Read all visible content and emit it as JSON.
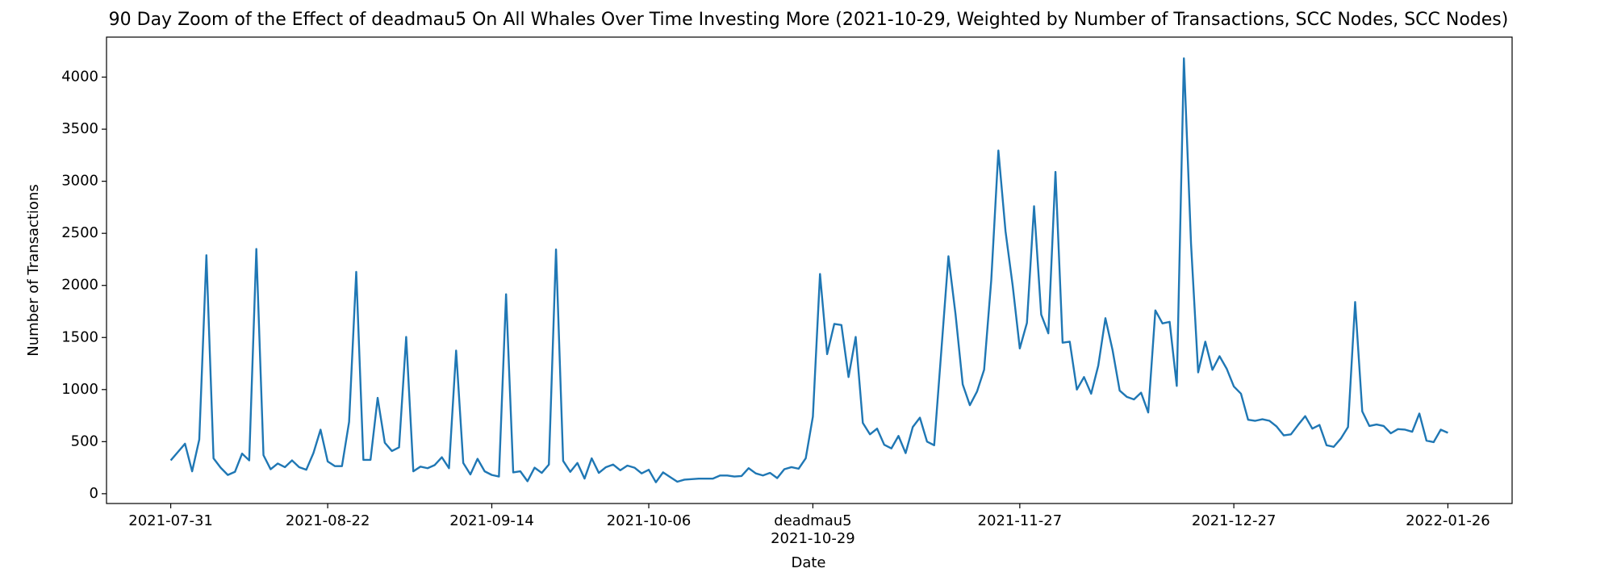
{
  "chart_data": {
    "type": "line",
    "title": "90 Day Zoom of the Effect of deadmau5 On All Whales Over Time Investing More (2021-10-29, Weighted by Number of Transactions, SCC Nodes, SCC Nodes)",
    "xlabel": "Date",
    "ylabel": "Number of Transactions",
    "color": "#1f77b4",
    "x": [
      "2021-07-31",
      "2021-08-01",
      "2021-08-02",
      "2021-08-03",
      "2021-08-04",
      "2021-08-05",
      "2021-08-06",
      "2021-08-07",
      "2021-08-08",
      "2021-08-09",
      "2021-08-10",
      "2021-08-11",
      "2021-08-12",
      "2021-08-13",
      "2021-08-14",
      "2021-08-15",
      "2021-08-16",
      "2021-08-17",
      "2021-08-18",
      "2021-08-19",
      "2021-08-20",
      "2021-08-21",
      "2021-08-22",
      "2021-08-23",
      "2021-08-24",
      "2021-08-25",
      "2021-08-26",
      "2021-08-27",
      "2021-08-28",
      "2021-08-29",
      "2021-08-30",
      "2021-08-31",
      "2021-09-01",
      "2021-09-02",
      "2021-09-03",
      "2021-09-04",
      "2021-09-05",
      "2021-09-06",
      "2021-09-07",
      "2021-09-08",
      "2021-09-09",
      "2021-09-10",
      "2021-09-11",
      "2021-09-12",
      "2021-09-13",
      "2021-09-14",
      "2021-09-15",
      "2021-09-16",
      "2021-09-17",
      "2021-09-18",
      "2021-09-19",
      "2021-09-20",
      "2021-09-21",
      "2021-09-22",
      "2021-09-23",
      "2021-09-24",
      "2021-09-25",
      "2021-09-26",
      "2021-09-27",
      "2021-09-28",
      "2021-09-29",
      "2021-09-30",
      "2021-10-01",
      "2021-10-02",
      "2021-10-03",
      "2021-10-04",
      "2021-10-05",
      "2021-10-06",
      "2021-10-07",
      "2021-10-08",
      "2021-10-09",
      "2021-10-10",
      "2021-10-11",
      "2021-10-12",
      "2021-10-13",
      "2021-10-14",
      "2021-10-15",
      "2021-10-16",
      "2021-10-17",
      "2021-10-18",
      "2021-10-19",
      "2021-10-20",
      "2021-10-21",
      "2021-10-22",
      "2021-10-23",
      "2021-10-24",
      "2021-10-25",
      "2021-10-26",
      "2021-10-27",
      "2021-10-28",
      "2021-10-29",
      "2021-10-30",
      "2021-10-31",
      "2021-11-01",
      "2021-11-02",
      "2021-11-03",
      "2021-11-04",
      "2021-11-05",
      "2021-11-06",
      "2021-11-07",
      "2021-11-08",
      "2021-11-09",
      "2021-11-10",
      "2021-11-11",
      "2021-11-12",
      "2021-11-13",
      "2021-11-14",
      "2021-11-15",
      "2021-11-16",
      "2021-11-17",
      "2021-11-18",
      "2021-11-19",
      "2021-11-20",
      "2021-11-21",
      "2021-11-22",
      "2021-11-23",
      "2021-11-24",
      "2021-11-25",
      "2021-11-26",
      "2021-11-27",
      "2021-11-28",
      "2021-11-29",
      "2021-11-30",
      "2021-12-01",
      "2021-12-02",
      "2021-12-03",
      "2021-12-04",
      "2021-12-05",
      "2021-12-06",
      "2021-12-07",
      "2021-12-08",
      "2021-12-09",
      "2021-12-10",
      "2021-12-11",
      "2021-12-12",
      "2021-12-13",
      "2021-12-14",
      "2021-12-15",
      "2021-12-16",
      "2021-12-17",
      "2021-12-18",
      "2021-12-19",
      "2021-12-20",
      "2021-12-21",
      "2021-12-22",
      "2021-12-23",
      "2021-12-24",
      "2021-12-25",
      "2021-12-26",
      "2021-12-27",
      "2021-12-28",
      "2021-12-29",
      "2021-12-30",
      "2021-12-31",
      "2022-01-01",
      "2022-01-02",
      "2022-01-03",
      "2022-01-04",
      "2022-01-05",
      "2022-01-06",
      "2022-01-07",
      "2022-01-08",
      "2022-01-09",
      "2022-01-10",
      "2022-01-11",
      "2022-01-12",
      "2022-01-13",
      "2022-01-14",
      "2022-01-15",
      "2022-01-16",
      "2022-01-17",
      "2022-01-18",
      "2022-01-19",
      "2022-01-20",
      "2022-01-21",
      "2022-01-22",
      "2022-01-23",
      "2022-01-24",
      "2022-01-25",
      "2022-01-26"
    ],
    "values": [
      320,
      400,
      480,
      215,
      520,
      2290,
      340,
      250,
      180,
      210,
      385,
      320,
      2350,
      370,
      235,
      290,
      255,
      320,
      255,
      230,
      390,
      615,
      310,
      265,
      265,
      690,
      2130,
      325,
      325,
      920,
      490,
      410,
      445,
      1505,
      215,
      260,
      245,
      275,
      350,
      245,
      1375,
      295,
      185,
      335,
      215,
      180,
      165,
      1915,
      205,
      215,
      120,
      250,
      200,
      280,
      2345,
      315,
      210,
      295,
      145,
      340,
      200,
      255,
      280,
      225,
      270,
      250,
      195,
      230,
      110,
      205,
      160,
      115,
      135,
      140,
      145,
      145,
      145,
      175,
      175,
      165,
      170,
      245,
      195,
      175,
      200,
      150,
      235,
      255,
      240,
      340,
      740,
      2110,
      1340,
      1630,
      1620,
      1120,
      1505,
      680,
      570,
      625,
      470,
      435,
      555,
      390,
      640,
      730,
      500,
      465,
      1370,
      2280,
      1720,
      1050,
      850,
      980,
      1190,
      2050,
      3295,
      2520,
      2000,
      1395,
      1640,
      2760,
      1720,
      1540,
      3090,
      1450,
      1460,
      1000,
      1120,
      960,
      1230,
      1685,
      1380,
      990,
      930,
      905,
      970,
      780,
      1760,
      1635,
      1650,
      1035,
      4180,
      2400,
      1165,
      1460,
      1190,
      1320,
      1200,
      1030,
      960,
      710,
      700,
      715,
      700,
      645,
      560,
      570,
      660,
      745,
      625,
      660,
      465,
      450,
      530,
      640,
      1840,
      790,
      650,
      665,
      650,
      580,
      620,
      615,
      595,
      770,
      510,
      495,
      615,
      585
    ],
    "xlim": [
      "2021-07-22",
      "2022-02-04"
    ],
    "xticks": [
      "2021-07-31",
      "2021-08-22",
      "2021-09-14",
      "2021-10-06",
      {
        "value": "2021-10-29",
        "label": "deadmau5\n2021-10-29"
      },
      "2021-11-27",
      "2021-12-27",
      "2022-01-26"
    ],
    "ylim": [
      -94,
      4384
    ],
    "yticks": [
      0,
      500,
      1000,
      1500,
      2000,
      2500,
      3000,
      3500,
      4000
    ]
  }
}
